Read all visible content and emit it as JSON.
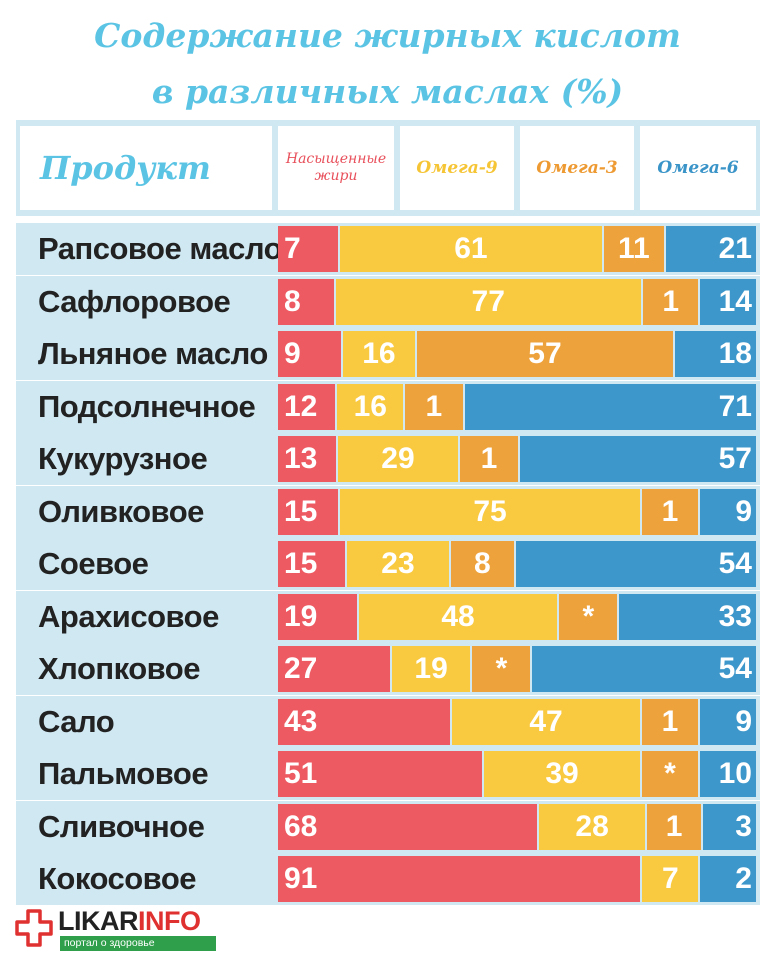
{
  "title": {
    "line1": "Содержание жирных кислот",
    "line2": "в различных маслах (%)"
  },
  "header": {
    "product": "Продукт",
    "saturated": "Насыщенные жири",
    "omega9": "Омега-9",
    "omega3": "Омега-3",
    "omega6": "Омега-6"
  },
  "colors": {
    "saturated": "#ee5a62",
    "omega9": "#f9c940",
    "omega3": "#eea23c",
    "omega6": "#3d97cb",
    "title": "#5bc4e4",
    "row_bg": "#cfe8f2"
  },
  "chart_data": {
    "type": "bar",
    "stacked": true,
    "orientation": "horizontal",
    "categories": [
      "Рапсовое масло",
      "Сафлоровое",
      "Льняное масло",
      "Подсолнечное",
      "Кукурузное",
      "Оливковое",
      "Соевое",
      "Арахисовое",
      "Хлопковое",
      "Сало",
      "Пальмовое",
      "Сливочное",
      "Кокосовое"
    ],
    "series": [
      {
        "name": "Насыщенные жири",
        "key": "saturated",
        "values": [
          7,
          8,
          9,
          12,
          13,
          15,
          15,
          19,
          27,
          43,
          51,
          68,
          91
        ]
      },
      {
        "name": "Омега-9",
        "key": "omega9",
        "values": [
          61,
          77,
          16,
          16,
          29,
          75,
          23,
          48,
          19,
          47,
          39,
          28,
          7
        ]
      },
      {
        "name": "Омега-3",
        "key": "omega3",
        "values": [
          11,
          1,
          57,
          1,
          1,
          1,
          8,
          null,
          null,
          1,
          null,
          1,
          null
        ]
      },
      {
        "name": "Омега-6",
        "key": "omega6",
        "values": [
          21,
          14,
          18,
          71,
          57,
          9,
          54,
          33,
          54,
          9,
          10,
          3,
          2
        ]
      }
    ],
    "labels": [
      [
        "7",
        "61",
        "11",
        "21"
      ],
      [
        "8",
        "77",
        "1",
        "14"
      ],
      [
        "9",
        "16",
        "57",
        "18"
      ],
      [
        "12",
        "16",
        "1",
        "71"
      ],
      [
        "13",
        "29",
        "1",
        "57"
      ],
      [
        "15",
        "75",
        "1",
        "9"
      ],
      [
        "15",
        "23",
        "8",
        "54"
      ],
      [
        "19",
        "48",
        "*",
        "33"
      ],
      [
        "27",
        "19",
        "*",
        "54"
      ],
      [
        "43",
        "47",
        "1",
        "9"
      ],
      [
        "51",
        "39",
        "*",
        "10"
      ],
      [
        "68",
        "28",
        "1",
        "3"
      ],
      [
        "91",
        "7",
        "",
        "2"
      ]
    ]
  },
  "logo": {
    "name_part1": "LIKAR",
    "name_part2": "INFO",
    "tagline": "портал о здоровье"
  }
}
